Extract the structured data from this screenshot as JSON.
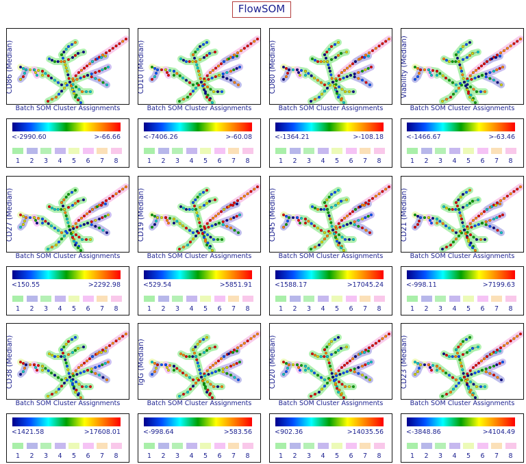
{
  "title": "FlowSOM",
  "colors": {
    "text": "#1a1f8f",
    "title_border": "#b23a3a"
  },
  "cluster_colors": [
    "#a9efa9",
    "#b7b7ea",
    "#b5f0b5",
    "#c6b8ef",
    "#ecfab7",
    "#f5c3f5",
    "#fbe0b8",
    "#f9c8ea"
  ],
  "colorscale": [
    "#00008b",
    "#0050ff",
    "#00ffff",
    "#00a000",
    "#ffff00",
    "#ff8000",
    "#ff0000"
  ],
  "chart_data": [
    {
      "type": "tree",
      "marker": "CD86",
      "ylabel": "CD86 (Median)",
      "xlabel": "Batch SOM Cluster Assignments",
      "min_label": "<-2990.60",
      "max_label": ">-66.66",
      "clusters": [
        "1",
        "2",
        "3",
        "4",
        "5",
        "6",
        "7",
        "8"
      ]
    },
    {
      "type": "tree",
      "marker": "CD10",
      "ylabel": "CD10 (Median)",
      "xlabel": "Batch SOM Cluster Assignments",
      "min_label": "<-7406.26",
      "max_label": ">-60.08",
      "clusters": [
        "1",
        "2",
        "3",
        "4",
        "5",
        "6",
        "7",
        "8"
      ]
    },
    {
      "type": "tree",
      "marker": "CD80",
      "ylabel": "CD80 (Median)",
      "xlabel": "Batch SOM Cluster Assignments",
      "min_label": "<-1364.21",
      "max_label": ">-108.18",
      "clusters": [
        "1",
        "2",
        "3",
        "4",
        "5",
        "6",
        "7",
        "8"
      ]
    },
    {
      "type": "tree",
      "marker": "Viability",
      "ylabel": "Viability (Median)",
      "xlabel": "Batch SOM Cluster Assignments",
      "min_label": "<-1466.67",
      "max_label": ">-63.46",
      "clusters": [
        "1",
        "2",
        "3",
        "4",
        "5",
        "6",
        "7",
        "8"
      ]
    },
    {
      "type": "tree",
      "marker": "CD27",
      "ylabel": "CD27 (Median)",
      "xlabel": "Batch SOM Cluster Assignments",
      "min_label": "<150.55",
      "max_label": ">2292.98",
      "clusters": [
        "1",
        "2",
        "3",
        "4",
        "5",
        "6",
        "7",
        "8"
      ]
    },
    {
      "type": "tree",
      "marker": "CD19",
      "ylabel": "CD19 (Median)",
      "xlabel": "Batch SOM Cluster Assignments",
      "min_label": "<529.54",
      "max_label": ">5851.91",
      "clusters": [
        "1",
        "2",
        "3",
        "4",
        "5",
        "6",
        "7",
        "8"
      ]
    },
    {
      "type": "tree",
      "marker": "CD45",
      "ylabel": "CD45 (Median)",
      "xlabel": "Batch SOM Cluster Assignments",
      "min_label": "<1588.17",
      "max_label": ">17045.24",
      "clusters": [
        "1",
        "2",
        "3",
        "4",
        "5",
        "6",
        "7",
        "8"
      ]
    },
    {
      "type": "tree",
      "marker": "CD21",
      "ylabel": "CD21 (Median)",
      "xlabel": "Batch SOM Cluster Assignments",
      "min_label": "<-998.11",
      "max_label": ">7199.63",
      "clusters": [
        "1",
        "2",
        "3",
        "4",
        "5",
        "6",
        "7",
        "8"
      ]
    },
    {
      "type": "tree",
      "marker": "CD38",
      "ylabel": "CD38 (Median)",
      "xlabel": "Batch SOM Cluster Assignments",
      "min_label": "<1421.58",
      "max_label": ">17608.01",
      "clusters": [
        "1",
        "2",
        "3",
        "4",
        "5",
        "6",
        "7",
        "8"
      ]
    },
    {
      "type": "tree",
      "marker": "IgG",
      "ylabel": "IgG (Median)",
      "xlabel": "Batch SOM Cluster Assignments",
      "min_label": "<-998.64",
      "max_label": ">583.56",
      "clusters": [
        "1",
        "2",
        "3",
        "4",
        "5",
        "6",
        "7",
        "8"
      ]
    },
    {
      "type": "tree",
      "marker": "CD20",
      "ylabel": "CD20 (Median)",
      "xlabel": "Batch SOM Cluster Assignments",
      "min_label": "<902.36",
      "max_label": ">14035.56",
      "clusters": [
        "1",
        "2",
        "3",
        "4",
        "5",
        "6",
        "7",
        "8"
      ]
    },
    {
      "type": "tree",
      "marker": "CD23",
      "ylabel": "CD23 (Median)",
      "xlabel": "Batch SOM Cluster Assignments",
      "min_label": "<-3848.86",
      "max_label": ">4104.49",
      "clusters": [
        "1",
        "2",
        "3",
        "4",
        "5",
        "6",
        "7",
        "8"
      ]
    }
  ]
}
